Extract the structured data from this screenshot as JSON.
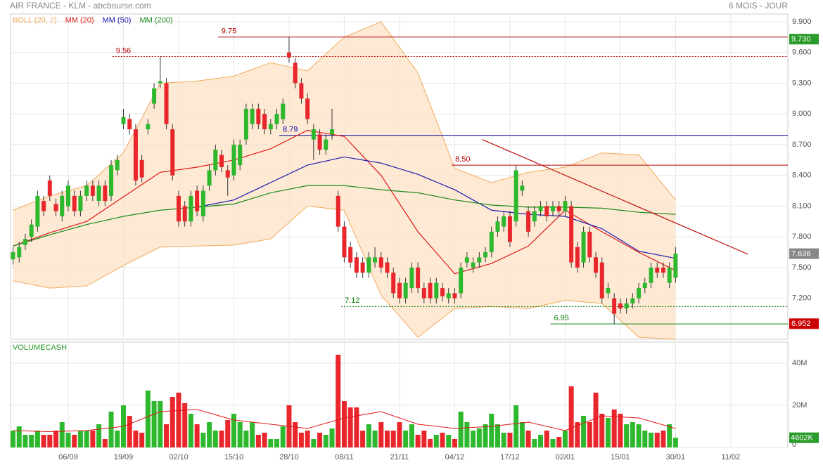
{
  "chart_data": {
    "type": "candlestick",
    "title": "AIR FRANCE - KLM - abcbourse.com",
    "subtitle": "6 MOIS - JOUR",
    "xlim": [
      -0.4,
      126.3
    ],
    "xticks": [
      {
        "value": 9,
        "label": "06/09"
      },
      {
        "value": 18,
        "label": "19/09"
      },
      {
        "value": 27,
        "label": "02/10"
      },
      {
        "value": 36,
        "label": "15/10"
      },
      {
        "value": 45,
        "label": "28/10"
      },
      {
        "value": 54,
        "label": "08/11"
      },
      {
        "value": 63,
        "label": "21/11"
      },
      {
        "value": 72,
        "label": "04/12"
      },
      {
        "value": 81,
        "label": "17/12"
      },
      {
        "value": 90,
        "label": "02/01"
      },
      {
        "value": 99,
        "label": "15/01"
      },
      {
        "value": 108,
        "label": "30/01"
      },
      {
        "value": 117,
        "label": "11/02"
      }
    ],
    "ylim": [
      6.8,
      9.975
    ],
    "yticks": [
      {
        "value": 9.9,
        "label": "9.900"
      },
      {
        "value": 9.6,
        "label": "9.600"
      },
      {
        "value": 9.3,
        "label": "9.300"
      },
      {
        "value": 9,
        "label": "9.000"
      },
      {
        "value": 8.7,
        "label": "8.700"
      },
      {
        "value": 8.4,
        "label": "8.400"
      },
      {
        "value": 8.1,
        "label": "8.100"
      },
      {
        "value": 7.8,
        "label": "7.800"
      },
      {
        "value": 7.5,
        "label": "7.500"
      },
      {
        "value": 7.2,
        "label": "7.200"
      }
    ],
    "grid": true,
    "up_color": "#2db82d",
    "down_color": "#e8262b",
    "open": [
      7.58,
      7.6,
      7.72,
      7.8,
      7.9,
      8.15,
      8.35,
      8.12,
      8.0,
      8.1,
      8.2,
      8.05,
      8.2,
      8.3,
      8.15,
      8.3,
      8.2,
      8.45,
      8.9,
      8.95,
      8.85,
      8.55,
      8.85,
      9.1,
      9.3,
      9.3,
      8.85,
      8.2,
      8.1,
      7.95,
      8.25,
      8.0,
      8.3,
      8.45,
      8.6,
      8.45,
      8.4,
      8.5,
      8.75,
      8.9,
      9.05,
      9.0,
      8.85,
      8.9,
      8.95,
      9.6,
      9.5,
      9.3,
      9.15,
      8.75,
      8.8,
      8.65,
      8.8,
      8.2,
      7.9,
      7.7,
      7.6,
      7.55,
      7.45,
      7.55,
      7.6,
      7.55,
      7.45,
      7.35,
      7.2,
      7.3,
      7.5,
      7.3,
      7.35,
      7.2,
      7.3,
      7.2,
      7.25,
      7.25,
      7.55,
      7.5,
      7.55,
      7.6,
      7.65,
      7.85,
      7.9,
      8.0,
      7.95,
      8.25,
      8.05,
      7.95,
      8.05,
      8.1,
      8.05,
      8.1,
      8.05,
      8.1,
      7.7,
      7.55,
      7.85,
      7.6,
      7.55,
      7.25,
      7.2,
      7.15,
      7.1,
      7.15,
      7.2,
      7.3,
      7.35,
      7.5,
      7.5,
      7.35,
      7.4
    ],
    "high": [
      7.7,
      7.75,
      7.83,
      7.97,
      8.25,
      8.2,
      8.4,
      8.17,
      8.25,
      8.35,
      8.25,
      8.25,
      8.35,
      8.35,
      8.35,
      8.35,
      8.55,
      8.6,
      9.05,
      9.0,
      8.9,
      8.6,
      8.95,
      9.3,
      9.56,
      9.35,
      8.9,
      8.25,
      8.15,
      8.25,
      8.3,
      8.3,
      8.5,
      8.7,
      8.65,
      8.5,
      8.75,
      8.75,
      9.1,
      9.1,
      9.1,
      9.05,
      8.95,
      9.05,
      9.15,
      9.75,
      9.55,
      9.35,
      9.2,
      8.9,
      8.85,
      8.8,
      9.05,
      8.25,
      7.95,
      7.75,
      7.65,
      7.6,
      7.65,
      7.7,
      7.65,
      7.6,
      7.5,
      7.4,
      7.4,
      7.55,
      7.55,
      7.35,
      7.4,
      7.4,
      7.35,
      7.3,
      7.3,
      7.55,
      7.65,
      7.6,
      7.65,
      7.7,
      7.9,
      8.0,
      8.05,
      8.05,
      8.5,
      8.35,
      8.1,
      8.1,
      8.15,
      8.15,
      8.15,
      8.15,
      8.2,
      8.15,
      7.75,
      7.9,
      7.9,
      7.65,
      7.6,
      7.35,
      7.25,
      7.2,
      7.2,
      7.25,
      7.35,
      7.4,
      7.55,
      7.55,
      7.55,
      7.55,
      7.7
    ],
    "low": [
      7.53,
      7.55,
      7.67,
      7.75,
      7.85,
      8.0,
      8.15,
      8.0,
      7.95,
      8.05,
      8.0,
      8.0,
      8.15,
      8.15,
      8.1,
      8.1,
      8.15,
      8.4,
      8.85,
      8.8,
      8.3,
      8.33,
      8.8,
      9.05,
      9.25,
      8.85,
      8.35,
      7.9,
      7.9,
      7.9,
      8.0,
      7.95,
      8.25,
      8.4,
      8.43,
      8.2,
      8.35,
      8.45,
      8.7,
      8.85,
      8.85,
      8.8,
      8.8,
      8.85,
      8.9,
      9.5,
      9.25,
      9.1,
      8.9,
      8.55,
      8.6,
      8.6,
      8.75,
      7.85,
      7.55,
      7.5,
      7.4,
      7.4,
      7.4,
      7.5,
      7.45,
      7.4,
      7.2,
      7.15,
      7.15,
      7.25,
      7.25,
      7.15,
      7.15,
      7.15,
      7.17,
      7.15,
      7.15,
      7.2,
      7.5,
      7.45,
      7.5,
      7.55,
      7.6,
      7.8,
      7.85,
      7.7,
      7.9,
      8.2,
      7.8,
      7.9,
      8.0,
      7.95,
      8.0,
      8.0,
      8.0,
      7.5,
      7.45,
      7.5,
      7.55,
      7.4,
      7.15,
      7.2,
      6.95,
      7.05,
      7.05,
      7.1,
      7.15,
      7.25,
      7.3,
      7.4,
      7.4,
      7.3,
      7.35
    ],
    "close": [
      7.65,
      7.7,
      7.78,
      7.92,
      8.2,
      8.05,
      8.2,
      8.05,
      8.2,
      8.3,
      8.05,
      8.2,
      8.3,
      8.2,
      8.3,
      8.15,
      8.5,
      8.55,
      8.97,
      8.85,
      8.35,
      8.38,
      8.9,
      9.25,
      9.32,
      8.9,
      8.4,
      7.95,
      7.95,
      8.2,
      8.05,
      8.25,
      8.45,
      8.65,
      8.48,
      8.38,
      8.7,
      8.7,
      9.05,
      9.05,
      8.9,
      8.85,
      8.9,
      9.0,
      9.1,
      9.55,
      9.3,
      9.15,
      8.95,
      8.85,
      8.65,
      8.75,
      8.85,
      7.9,
      7.6,
      7.55,
      7.45,
      7.45,
      7.6,
      7.6,
      7.5,
      7.45,
      7.25,
      7.2,
      7.35,
      7.5,
      7.3,
      7.2,
      7.2,
      7.35,
      7.22,
      7.25,
      7.2,
      7.5,
      7.6,
      7.55,
      7.6,
      7.65,
      7.85,
      7.95,
      8.0,
      7.75,
      8.45,
      8.3,
      7.85,
      8.05,
      8.1,
      8.0,
      8.1,
      8.05,
      8.15,
      7.55,
      7.5,
      7.85,
      7.6,
      7.45,
      7.2,
      7.3,
      7.05,
      7.1,
      7.15,
      7.2,
      7.3,
      7.35,
      7.5,
      7.45,
      7.45,
      7.5,
      7.636
    ],
    "ma_x": [
      0,
      6,
      12,
      18,
      24,
      30,
      36,
      42,
      48,
      54,
      60,
      66,
      72,
      78,
      84,
      90,
      96,
      102,
      108
    ],
    "bollinger": {
      "name": "BOLL (20, 2)",
      "color": "#f2a95a",
      "fill": "#fde3c6",
      "upper": [
        8.06,
        8.2,
        8.3,
        8.62,
        9.3,
        9.32,
        9.37,
        9.5,
        9.42,
        9.75,
        9.9,
        9.4,
        8.47,
        8.33,
        8.43,
        8.48,
        8.62,
        8.6,
        8.16
      ],
      "lower": [
        7.37,
        7.3,
        7.32,
        7.52,
        7.7,
        7.71,
        7.72,
        7.78,
        8.1,
        8.06,
        7.23,
        6.82,
        7.1,
        7.12,
        7.1,
        7.18,
        7.15,
        6.82,
        6.8
      ]
    },
    "series": [
      {
        "name": "MM (20)",
        "color": "#e01818",
        "values": [
          7.71,
          7.84,
          7.95,
          8.19,
          8.43,
          8.48,
          8.55,
          8.66,
          8.84,
          8.78,
          8.4,
          7.85,
          7.44,
          7.54,
          7.71,
          8.06,
          7.85,
          7.65,
          7.47
        ]
      },
      {
        "name": "MM (50)",
        "color": "#1a1ab0",
        "values": [
          null,
          null,
          null,
          null,
          null,
          8.09,
          8.16,
          8.33,
          8.5,
          8.58,
          8.52,
          8.41,
          8.26,
          8.06,
          8.02,
          8.0,
          7.88,
          7.66,
          7.59
        ]
      },
      {
        "name": "MM (200)",
        "color": "#1a8a1a",
        "values": [
          7.71,
          7.82,
          7.92,
          8.0,
          8.06,
          8.09,
          8.12,
          8.23,
          8.3,
          8.3,
          8.26,
          8.23,
          8.16,
          8.11,
          8.09,
          8.09,
          8.08,
          8.04,
          8.02
        ]
      }
    ],
    "levels": [
      {
        "value": 9.75,
        "label": "9.75",
        "color": "#b00000",
        "dash": "none",
        "start": 33.4
      },
      {
        "value": 9.56,
        "label": "9.56",
        "color": "#b00000",
        "dash": "2,2",
        "start": 16.2
      },
      {
        "value": 8.79,
        "label": "8.79",
        "color": "#0000a0",
        "dash": "none",
        "start": 43.4
      },
      {
        "value": 8.5,
        "label": "8.50",
        "color": "#b00000",
        "dash": "none",
        "start": 71.5
      },
      {
        "value": 7.12,
        "label": "7.12",
        "color": "#008000",
        "dash": "2,2",
        "start": 53.5
      },
      {
        "value": 6.95,
        "label": "6.95",
        "color": "#008000",
        "dash": "none",
        "start": 87.6
      }
    ],
    "trendline": {
      "color": "#c01010",
      "x": [
        76.5,
        119.8
      ],
      "values": [
        8.75,
        7.63
      ]
    },
    "badges": [
      {
        "value": 9.73,
        "label": "9.730",
        "color": "#2a9a2a"
      },
      {
        "value": 7.636,
        "label": "7.636",
        "color": "#888888"
      },
      {
        "value": 6.952,
        "label": "6.952",
        "color": "#cc0000"
      }
    ],
    "volume": {
      "title": "VOLUMECASH",
      "ylim": [
        0,
        50
      ],
      "yticks": [
        0,
        {
          "value": 20,
          "label": "20M"
        },
        {
          "value": 40,
          "label": "40M"
        }
      ],
      "values": [
        8,
        10,
        6,
        6,
        8,
        6,
        6,
        8,
        12,
        7,
        6,
        8,
        8,
        8,
        11,
        4,
        17,
        8,
        20,
        15,
        8,
        7,
        27,
        22,
        22,
        11,
        24,
        26,
        21,
        16,
        11,
        7,
        12,
        8,
        8,
        13,
        16,
        12,
        8,
        12,
        6,
        7,
        4,
        4,
        10,
        20,
        12,
        7,
        8,
        4,
        7,
        6,
        9,
        44,
        22,
        19,
        19,
        8,
        11,
        8,
        12,
        8,
        8,
        12,
        8,
        11,
        6,
        8,
        4,
        6,
        7,
        6,
        4,
        17,
        12,
        8,
        9,
        11,
        16,
        11,
        7,
        7,
        20,
        12,
        8,
        4,
        6,
        8,
        4,
        5,
        8,
        29,
        12,
        15,
        12,
        26,
        16,
        14,
        18,
        16,
        11,
        12,
        11,
        8,
        7,
        7,
        8,
        11,
        4.602
      ],
      "ma": {
        "color": "#e01818",
        "values": [
          8,
          7.5,
          8,
          10,
          17,
          18,
          13,
          11,
          9,
          14,
          17,
          11,
          9,
          10,
          12,
          8,
          15,
          14,
          9
        ]
      },
      "badge": {
        "value": 4.602,
        "label": "4602K",
        "color": "#2a9a2a"
      }
    }
  }
}
